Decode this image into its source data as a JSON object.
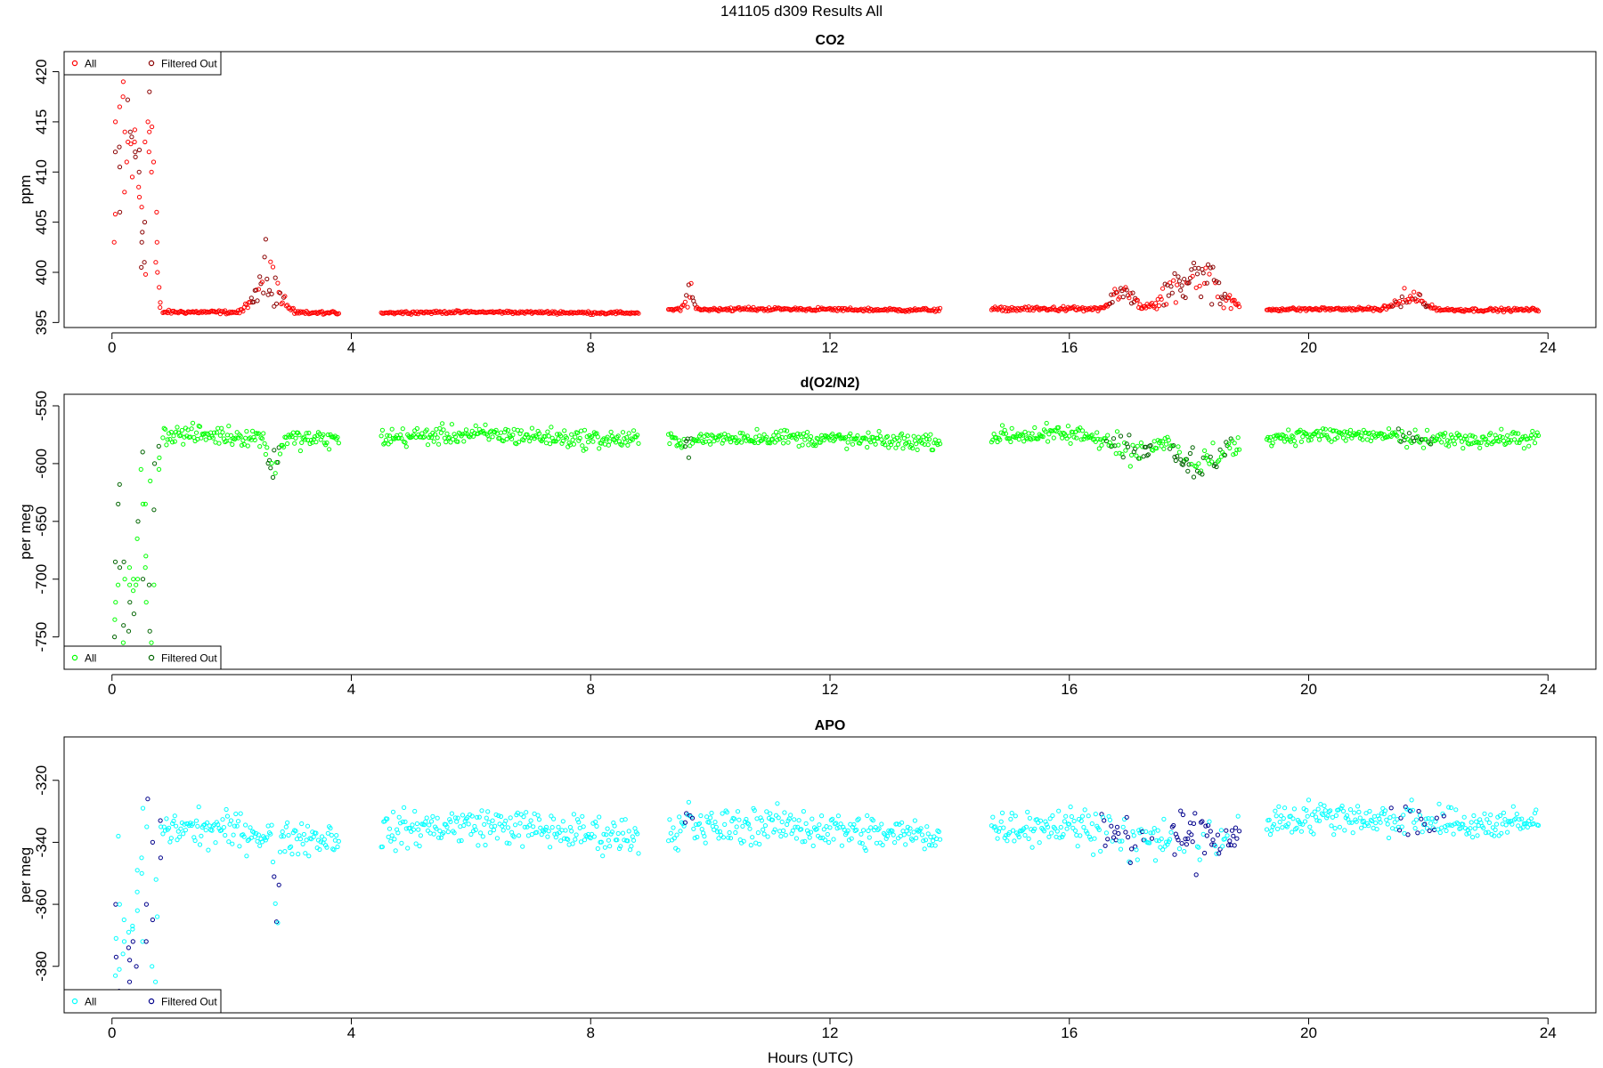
{
  "figure": {
    "title": "141105   d309   Results All",
    "xlabel": "Hours (UTC)"
  },
  "chart_data": [
    {
      "type": "scatter",
      "title": "CO2",
      "ylabel": "ppm",
      "xlabel": "Hours (UTC)",
      "xlim": [
        -0.8,
        24.8
      ],
      "ylim": [
        394.5,
        422
      ],
      "xticks": [
        0,
        4,
        8,
        12,
        16,
        20,
        24
      ],
      "yticks": [
        395,
        400,
        405,
        410,
        415,
        420
      ],
      "grid": false,
      "legend_position": "top-left",
      "series": [
        {
          "name": "All",
          "color": "#ff0000",
          "role": "all"
        },
        {
          "name": "Filtered Out",
          "color": "#8b0000",
          "role": "filtered"
        }
      ],
      "spikes": [
        {
          "x": 0.05,
          "values": [
            412,
            405.8,
            415,
            403
          ]
        },
        {
          "x": 0.12,
          "values": [
            416.5,
            410.5,
            406,
            412.5
          ]
        },
        {
          "x": 0.2,
          "values": [
            419,
            414,
            417.5,
            408
          ]
        },
        {
          "x": 0.25,
          "values": [
            420,
            413,
            411,
            417.2
          ]
        },
        {
          "x": 0.32,
          "values": [
            414,
            412.8,
            409.5,
            413.5
          ]
        },
        {
          "x": 0.38,
          "values": [
            413,
            411.5,
            414.2,
            412
          ]
        },
        {
          "x": 0.45,
          "values": [
            410,
            407.5,
            412.2,
            408.5
          ]
        },
        {
          "x": 0.5,
          "values": [
            406.5,
            403,
            400.5,
            404
          ]
        },
        {
          "x": 0.55,
          "values": [
            401,
            405,
            399.8,
            413
          ]
        },
        {
          "x": 0.62,
          "values": [
            414,
            415,
            412,
            418
          ]
        },
        {
          "x": 0.68,
          "values": [
            420,
            414.5,
            411,
            410
          ]
        },
        {
          "x": 0.74,
          "values": [
            406,
            403,
            401,
            400
          ]
        },
        {
          "x": 0.8,
          "values": [
            398.5,
            397,
            396.5
          ]
        }
      ],
      "segments": [
        {
          "start": 0.85,
          "end": 3.8,
          "base": 396.0,
          "noise": 0.15,
          "bumps": [
            {
              "x": 2.6,
              "height": 3.5,
              "width": 0.18,
              "spread": 2.5,
              "filtered": 0.6
            }
          ]
        },
        {
          "start": 4.5,
          "end": 8.8,
          "base": 396.0,
          "noise": 0.12,
          "bumps": []
        },
        {
          "start": 9.3,
          "end": 13.85,
          "base": 396.3,
          "noise": 0.15,
          "bumps": [
            {
              "x": 9.65,
              "height": 1.5,
              "width": 0.06,
              "spread": 1.0,
              "filtered": 0.4
            }
          ]
        },
        {
          "start": 14.7,
          "end": 18.85,
          "base": 396.3,
          "noise": 0.2,
          "bumps": [
            {
              "x": 16.9,
              "height": 1.8,
              "width": 0.15,
              "spread": 1.2,
              "filtered": 0.6
            },
            {
              "x": 18.1,
              "height": 3.5,
              "width": 0.35,
              "spread": 2.5,
              "filtered": 0.6
            }
          ]
        },
        {
          "start": 19.3,
          "end": 23.85,
          "base": 396.3,
          "noise": 0.15,
          "bumps": [
            {
              "x": 21.7,
              "height": 1.2,
              "width": 0.2,
              "spread": 1.0,
              "filtered": 0.3
            }
          ]
        }
      ]
    },
    {
      "type": "scatter",
      "title": "d(O2/N2)",
      "ylabel": "per meg",
      "xlabel": "Hours (UTC)",
      "xlim": [
        -0.8,
        24.8
      ],
      "ylim": [
        -778,
        -540
      ],
      "xticks": [
        0,
        4,
        8,
        12,
        16,
        20,
        24
      ],
      "yticks": [
        -550,
        -600,
        -650,
        -700,
        -750
      ],
      "grid": false,
      "legend_position": "bottom-left",
      "series": [
        {
          "name": "All",
          "color": "#00ff00",
          "role": "all"
        },
        {
          "name": "Filtered Out",
          "color": "#006400",
          "role": "filtered"
        }
      ],
      "spikes": [
        {
          "x": 0.05,
          "values": [
            -685,
            -720,
            -735,
            -750
          ]
        },
        {
          "x": 0.12,
          "values": [
            -618,
            -635,
            -690,
            -705
          ]
        },
        {
          "x": 0.2,
          "values": [
            -700,
            -740,
            -755,
            -685
          ]
        },
        {
          "x": 0.28,
          "values": [
            -745,
            -720,
            -690,
            -705
          ]
        },
        {
          "x": 0.35,
          "values": [
            -710,
            -700,
            -730,
            -760
          ]
        },
        {
          "x": 0.42,
          "values": [
            -700,
            -705,
            -665,
            -650
          ]
        },
        {
          "x": 0.5,
          "values": [
            -635,
            -605,
            -590,
            -700
          ]
        },
        {
          "x": 0.57,
          "values": [
            -690,
            -720,
            -635,
            -680
          ]
        },
        {
          "x": 0.64,
          "values": [
            -705,
            -745,
            -755,
            -615
          ]
        },
        {
          "x": 0.72,
          "values": [
            -600,
            -640,
            -705
          ]
        },
        {
          "x": 0.8,
          "values": [
            -595,
            -605,
            -585
          ]
        }
      ],
      "segments": [
        {
          "start": 0.85,
          "end": 3.8,
          "base": -577,
          "noise": 7,
          "bumps": [
            {
              "x": 2.7,
              "height": -25,
              "width": 0.08,
              "spread": 15,
              "filtered": 0.5
            }
          ]
        },
        {
          "start": 4.5,
          "end": 8.8,
          "base": -577,
          "noise": 7,
          "bumps": []
        },
        {
          "start": 9.3,
          "end": 13.85,
          "base": -579,
          "noise": 6,
          "bumps": [
            {
              "x": 9.65,
              "height": -5,
              "width": 0.05,
              "spread": 6,
              "filtered": 0.5
            }
          ]
        },
        {
          "start": 14.7,
          "end": 18.85,
          "base": -577,
          "noise": 7,
          "bumps": [
            {
              "x": 17.0,
              "height": -12,
              "width": 0.25,
              "spread": 8,
              "filtered": 0.5
            },
            {
              "x": 18.2,
              "height": -20,
              "width": 0.35,
              "spread": 12,
              "filtered": 0.5
            }
          ]
        },
        {
          "start": 19.3,
          "end": 23.85,
          "base": -577,
          "noise": 6,
          "bumps": [
            {
              "x": 21.8,
              "height": -4,
              "width": 0.2,
              "spread": 4,
              "filtered": 0.3
            }
          ]
        }
      ]
    },
    {
      "type": "scatter",
      "title": "APO",
      "ylabel": "per meg",
      "xlabel": "Hours (UTC)",
      "xlim": [
        -0.8,
        24.8
      ],
      "ylim": [
        -395,
        -306
      ],
      "xticks": [
        0,
        4,
        8,
        12,
        16,
        20,
        24
      ],
      "yticks": [
        -320,
        -340,
        -360,
        -380
      ],
      "grid": false,
      "legend_position": "bottom-left",
      "series": [
        {
          "name": "All",
          "color": "#00ffff",
          "role": "all"
        },
        {
          "name": "Filtered Out",
          "color": "#00008b",
          "role": "filtered"
        }
      ],
      "spikes": [
        {
          "x": 0.05,
          "values": [
            -360,
            -371,
            -377,
            -383
          ]
        },
        {
          "x": 0.12,
          "values": [
            -338,
            -360,
            -381,
            -388
          ]
        },
        {
          "x": 0.2,
          "values": [
            -376,
            -365,
            -372,
            -390
          ]
        },
        {
          "x": 0.28,
          "values": [
            -369,
            -378,
            -374,
            -385
          ]
        },
        {
          "x": 0.35,
          "values": [
            -367,
            -372,
            -368,
            -390
          ]
        },
        {
          "x": 0.42,
          "values": [
            -349,
            -356,
            -362,
            -380
          ]
        },
        {
          "x": 0.5,
          "values": [
            -329,
            -345,
            -350,
            -372
          ]
        },
        {
          "x": 0.58,
          "values": [
            -326,
            -335,
            -360,
            -372
          ]
        },
        {
          "x": 0.66,
          "values": [
            -340,
            -365,
            -380,
            -389
          ]
        },
        {
          "x": 0.74,
          "values": [
            -352,
            -364,
            -385
          ]
        },
        {
          "x": 0.8,
          "values": [
            -335,
            -345,
            -333
          ]
        }
      ],
      "segments": [
        {
          "start": 0.85,
          "end": 3.8,
          "base": -337,
          "noise": 5,
          "bumps": [
            {
              "x": 2.75,
              "height": -33,
              "width": 0.03,
              "spread": 4,
              "filtered": 0.5
            }
          ]
        },
        {
          "start": 4.5,
          "end": 8.8,
          "base": -336,
          "noise": 5,
          "bumps": []
        },
        {
          "start": 9.3,
          "end": 13.85,
          "base": -336,
          "noise": 5,
          "bumps": [
            {
              "x": 9.65,
              "height": 4,
              "width": 0.05,
              "spread": 5,
              "filtered": 0.6
            }
          ]
        },
        {
          "start": 14.7,
          "end": 18.85,
          "base": -336,
          "noise": 5,
          "bumps": [
            {
              "x": 17.0,
              "height": -3,
              "width": 0.3,
              "spread": 6,
              "filtered": 0.5
            },
            {
              "x": 18.3,
              "height": -2,
              "width": 0.4,
              "spread": 7,
              "filtered": 0.6
            }
          ]
        },
        {
          "start": 19.3,
          "end": 23.85,
          "base": -333,
          "noise": 4.5,
          "bumps": [
            {
              "x": 21.8,
              "height": 0,
              "width": 0.3,
              "spread": 3,
              "filtered": 0.3
            }
          ]
        }
      ]
    }
  ]
}
